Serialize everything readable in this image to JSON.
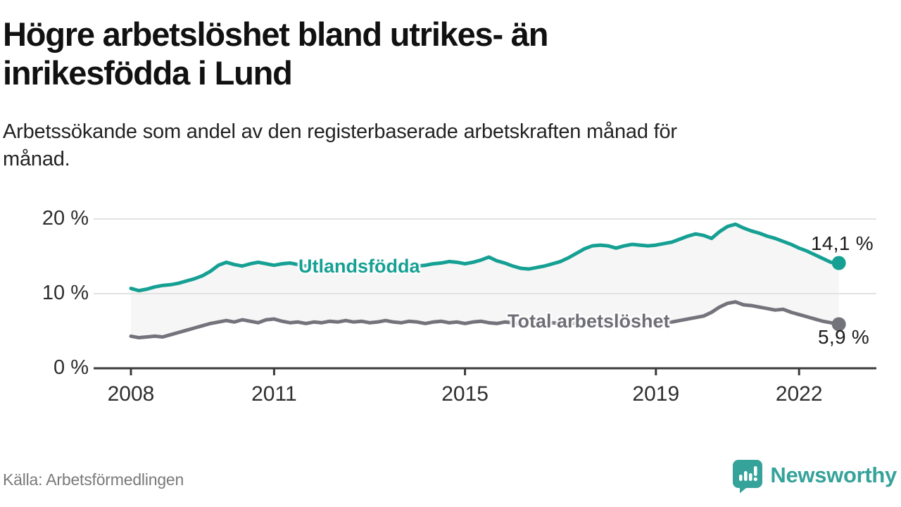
{
  "header": {
    "title_lines": [
      "Högre arbetslöshet bland utrikes- än",
      "inrikesfödda i Lund"
    ],
    "subtitle_lines": [
      "Arbetssökande som andel av den registerbaserade arbetskraften månad för",
      "månad."
    ]
  },
  "footer": {
    "source": "Källa: Arbetsförmedlingen",
    "brand_name": "Newsworthy",
    "brand_icon": "newsworthy-speech-bubble-bar-chart-icon",
    "brand_color": "#35a39a"
  },
  "chart_data": {
    "type": "line",
    "title": "Högre arbetslöshet bland utrikes- än inrikesfödda i Lund",
    "subtitle": "Arbetssökande som andel av den registerbaserade arbetskraften månad för månad.",
    "x_axis": {
      "start_year": 2008.0,
      "step_months": 2,
      "ticks": [
        2008,
        2011,
        2015,
        2019,
        2022
      ]
    },
    "y_axis": {
      "tick_values": [
        0,
        10,
        20
      ],
      "tick_labels": [
        "0 %",
        "10 %",
        "20 %"
      ],
      "ylim": [
        0,
        21.5
      ],
      "grid": true
    },
    "band_fill_between_series": true,
    "band_fill_color": "#F6F6F6",
    "grid_color": "#E2E2E2",
    "axis_color": "#3B3B3B",
    "legend_position": "inline-labels",
    "series": [
      {
        "name": "Utlandsfödda",
        "color": "#16A094",
        "end_label": "14,1 %",
        "end_value": 14.1,
        "values": [
          10.7,
          10.4,
          10.6,
          10.9,
          11.1,
          11.2,
          11.4,
          11.7,
          12.0,
          12.4,
          13.0,
          13.8,
          14.2,
          13.9,
          13.7,
          14.0,
          14.2,
          14.0,
          13.8,
          14.0,
          14.1,
          13.9,
          13.7,
          13.8,
          13.6,
          13.7,
          13.9,
          13.8,
          13.6,
          13.7,
          13.8,
          13.7,
          13.9,
          14.0,
          13.8,
          13.9,
          13.7,
          13.8,
          14.0,
          14.1,
          14.3,
          14.2,
          14.0,
          14.2,
          14.5,
          14.9,
          14.4,
          14.1,
          13.7,
          13.4,
          13.3,
          13.5,
          13.7,
          14.0,
          14.3,
          14.8,
          15.4,
          16.0,
          16.4,
          16.5,
          16.4,
          16.1,
          16.4,
          16.6,
          16.5,
          16.4,
          16.5,
          16.7,
          16.9,
          17.3,
          17.7,
          18.0,
          17.8,
          17.4,
          18.3,
          19.0,
          19.3,
          18.8,
          18.4,
          18.1,
          17.7,
          17.4,
          17.0,
          16.6,
          16.1,
          15.7,
          15.2,
          14.7,
          14.2,
          14.1
        ]
      },
      {
        "name": "Total arbetslöshet",
        "color": "#73737B",
        "end_label": "5,9 %",
        "end_value": 5.9,
        "values": [
          4.3,
          4.1,
          4.2,
          4.3,
          4.2,
          4.5,
          4.8,
          5.1,
          5.4,
          5.7,
          6.0,
          6.2,
          6.4,
          6.2,
          6.5,
          6.3,
          6.1,
          6.5,
          6.6,
          6.3,
          6.1,
          6.2,
          6.0,
          6.2,
          6.1,
          6.3,
          6.2,
          6.4,
          6.2,
          6.3,
          6.1,
          6.2,
          6.4,
          6.2,
          6.1,
          6.3,
          6.2,
          6.0,
          6.2,
          6.3,
          6.1,
          6.2,
          6.0,
          6.2,
          6.3,
          6.1,
          6.0,
          6.2,
          6.1,
          5.9,
          6.0,
          6.2,
          6.0,
          6.1,
          6.0,
          5.9,
          6.1,
          6.2,
          6.0,
          6.1,
          5.9,
          5.8,
          6.0,
          6.1,
          5.9,
          6.0,
          6.0,
          6.1,
          6.2,
          6.4,
          6.6,
          6.8,
          7.0,
          7.5,
          8.2,
          8.7,
          8.9,
          8.5,
          8.4,
          8.2,
          8.0,
          7.8,
          7.9,
          7.5,
          7.2,
          6.9,
          6.6,
          6.3,
          6.1,
          5.9
        ]
      }
    ]
  }
}
